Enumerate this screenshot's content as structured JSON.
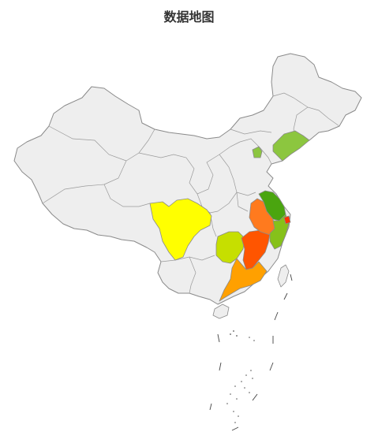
{
  "title": "数据地图",
  "colors": {
    "default_fill": "#eeeeee",
    "border": "#8a8a8a",
    "sichuan": "#ffff00",
    "guangxi": "#c6df00",
    "hunan": "#ff5500",
    "jiangxi": "#ff7a1e",
    "guangdong": "#ffa000",
    "anhui": "#4aa50f",
    "zhejiang": "#86c11a",
    "shanghai": "#ff3300",
    "liaoning": "#8cc63f",
    "beijing": "#8cc63f"
  }
}
